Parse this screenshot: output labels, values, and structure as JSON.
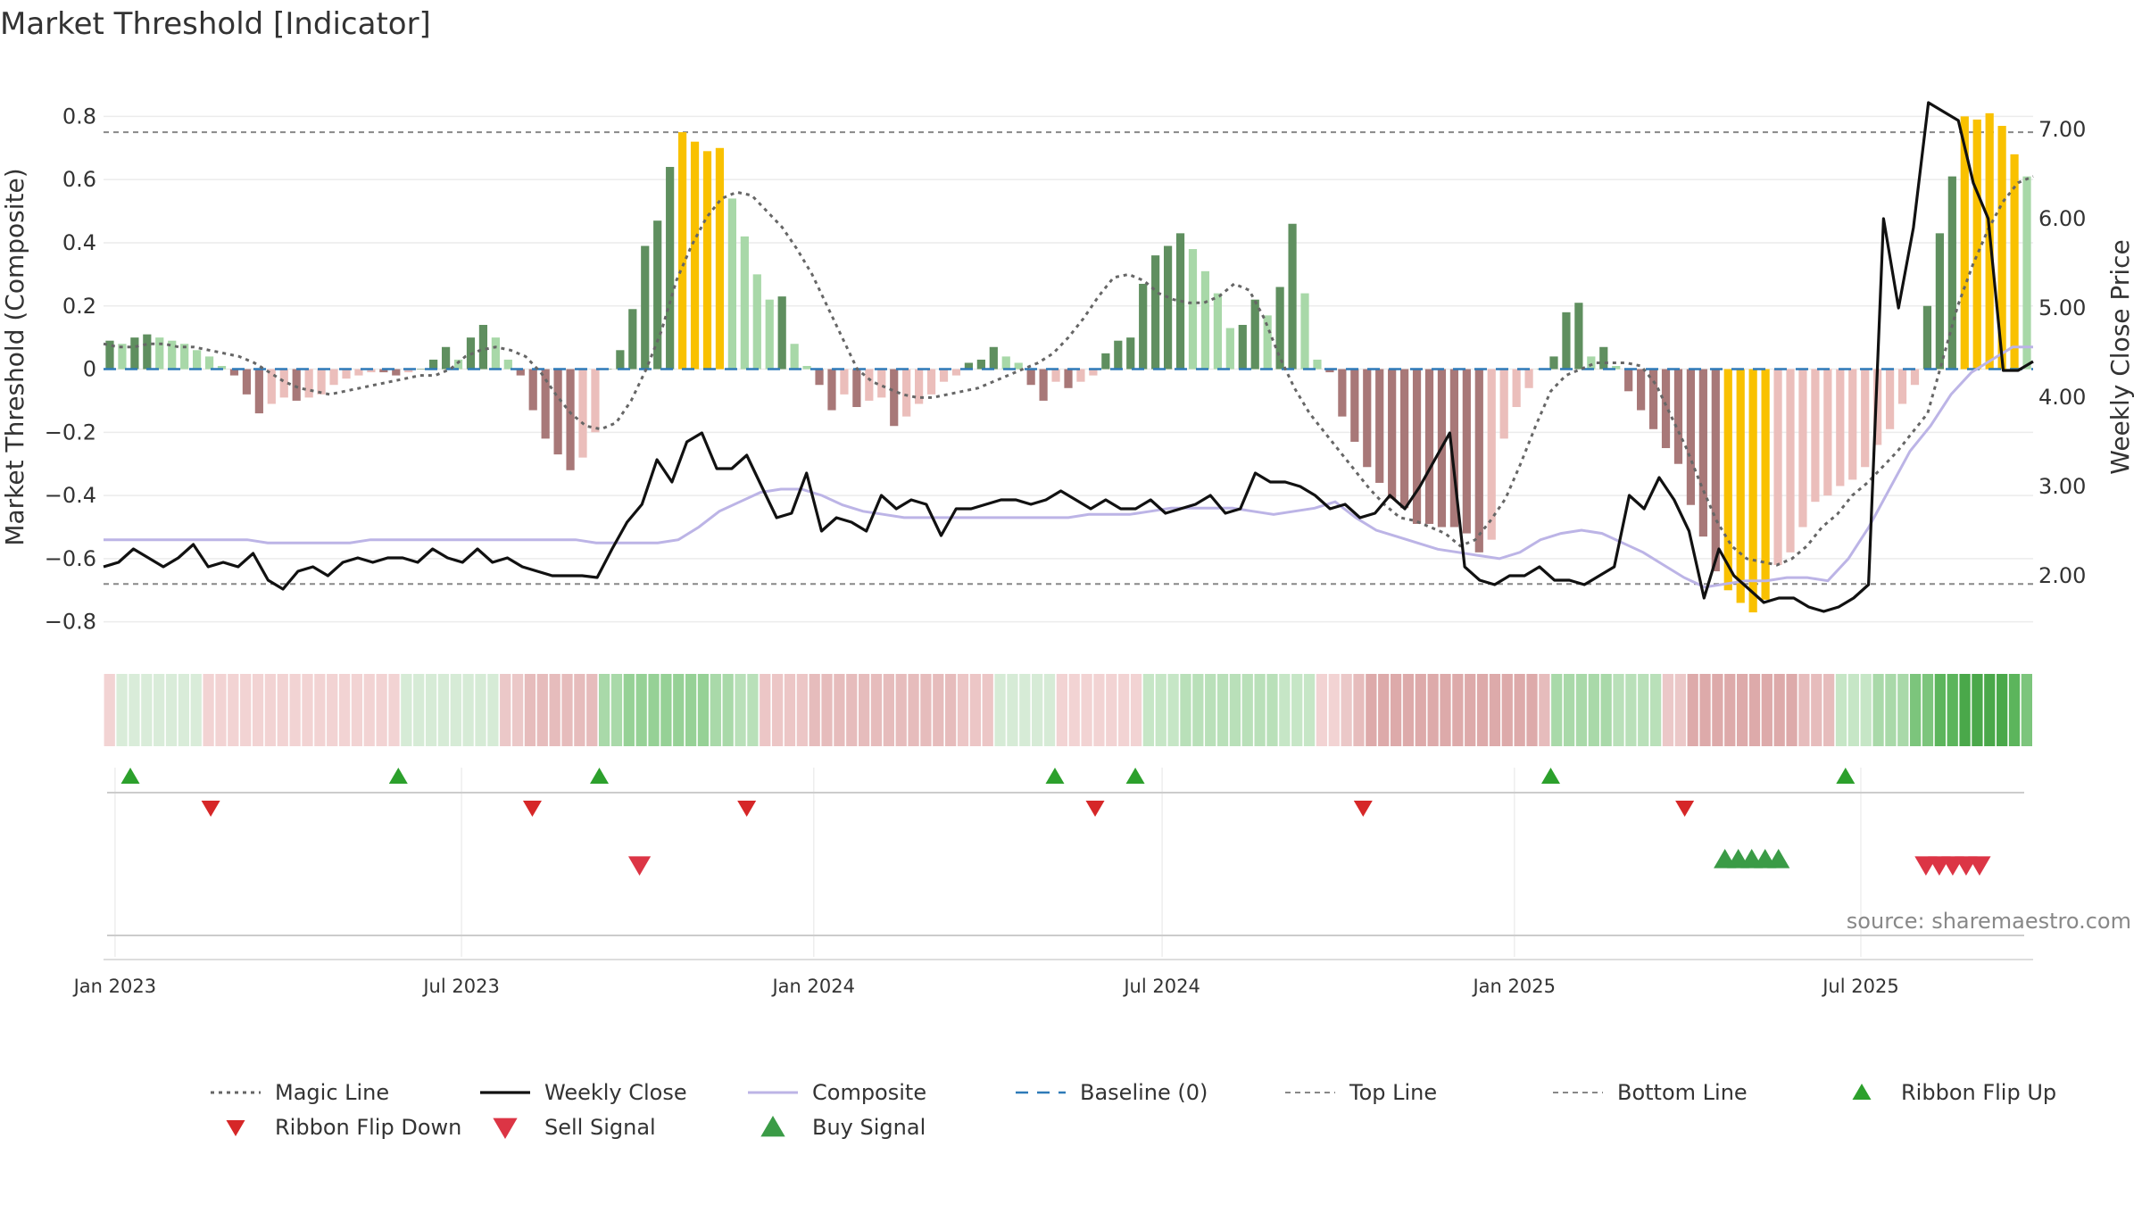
{
  "chart_data": {
    "type": "bar",
    "title": "Market Threshold [Indicator]",
    "ylabel": "Market Threshold (Composite)",
    "y2label": "Weekly Close Price",
    "ylim": [
      -0.88,
      0.9
    ],
    "y2lim": [
      1.2,
      7.5
    ],
    "yticks": [
      0.8,
      0.6,
      0.4,
      0.2,
      0,
      -0.2,
      -0.4,
      -0.6,
      -0.8
    ],
    "ytick_labels": [
      "0.8",
      "0.6",
      "0.4",
      "0.2",
      "0",
      "−0.2",
      "−0.4",
      "−0.6",
      "−0.8"
    ],
    "y2ticks": [
      7,
      6,
      5,
      4,
      3,
      2
    ],
    "y2tick_labels": [
      "7.00",
      "6.00",
      "5.00",
      "4.00",
      "3.00",
      "2.00"
    ],
    "x_start": "2022-12-26",
    "x_end": "2025-09-29",
    "xticks": [
      "2023-01-01",
      "2023-07-01",
      "2024-01-01",
      "2024-07-01",
      "2025-01-01",
      "2025-07-01"
    ],
    "xtick_labels": [
      "Jan 2023",
      "Jul 2023",
      "Jan 2024",
      "Jul 2024",
      "Jan 2025",
      "Jul 2025"
    ],
    "top_line": 0.75,
    "bottom_line": -0.68,
    "baseline": 0,
    "threshold_bars": [
      0.09,
      0.08,
      0.1,
      0.11,
      0.1,
      0.09,
      0.08,
      0.06,
      0.04,
      0.01,
      -0.02,
      -0.08,
      -0.14,
      -0.11,
      -0.09,
      -0.1,
      -0.09,
      -0.08,
      -0.05,
      -0.03,
      -0.02,
      -0.01,
      -0.01,
      -0.02,
      -0.01,
      0.0,
      0.03,
      0.07,
      0.03,
      0.1,
      0.14,
      0.1,
      0.03,
      -0.02,
      -0.13,
      -0.22,
      -0.27,
      -0.32,
      -0.28,
      -0.2,
      0.0,
      0.06,
      0.19,
      0.39,
      0.47,
      0.64,
      0.75,
      0.72,
      0.69,
      0.7,
      0.54,
      0.42,
      0.3,
      0.22,
      0.23,
      0.08,
      0.01,
      -0.05,
      -0.13,
      -0.08,
      -0.12,
      -0.1,
      -0.09,
      -0.18,
      -0.15,
      -0.11,
      -0.08,
      -0.04,
      -0.02,
      0.02,
      0.03,
      0.07,
      0.04,
      0.02,
      -0.05,
      -0.1,
      -0.04,
      -0.06,
      -0.04,
      -0.02,
      0.05,
      0.09,
      0.1,
      0.27,
      0.36,
      0.39,
      0.43,
      0.38,
      0.31,
      0.24,
      0.13,
      0.14,
      0.22,
      0.17,
      0.26,
      0.46,
      0.24,
      0.03,
      -0.01,
      -0.15,
      -0.23,
      -0.31,
      -0.36,
      -0.41,
      -0.44,
      -0.49,
      -0.49,
      -0.5,
      -0.5,
      -0.52,
      -0.58,
      -0.54,
      -0.22,
      -0.12,
      -0.06,
      0.0,
      0.04,
      0.18,
      0.21,
      0.04,
      0.07,
      0.01,
      -0.07,
      -0.13,
      -0.19,
      -0.25,
      -0.3,
      -0.43,
      -0.53,
      -0.64,
      -0.7,
      -0.74,
      -0.77,
      -0.73,
      -0.62,
      -0.58,
      -0.5,
      -0.42,
      -0.4,
      -0.37,
      -0.35,
      -0.31,
      -0.24,
      -0.19,
      -0.11,
      -0.05,
      0.2,
      0.43,
      0.61,
      0.8,
      0.79,
      0.81,
      0.77,
      0.68,
      0.61
    ],
    "magic_line": [
      0.08,
      0.07,
      0.07,
      0.08,
      0.08,
      0.07,
      0.07,
      0.06,
      0.05,
      0.04,
      0.02,
      -0.01,
      -0.04,
      -0.06,
      -0.07,
      -0.08,
      -0.07,
      -0.06,
      -0.05,
      -0.04,
      -0.03,
      -0.02,
      -0.02,
      0.0,
      0.04,
      0.06,
      0.07,
      0.06,
      0.04,
      -0.01,
      -0.08,
      -0.14,
      -0.18,
      -0.19,
      -0.17,
      -0.1,
      0.0,
      0.12,
      0.28,
      0.39,
      0.48,
      0.54,
      0.56,
      0.55,
      0.5,
      0.45,
      0.38,
      0.3,
      0.2,
      0.1,
      0.0,
      -0.04,
      -0.06,
      -0.08,
      -0.09,
      -0.09,
      -0.08,
      -0.07,
      -0.06,
      -0.04,
      -0.02,
      0.0,
      0.02,
      0.05,
      0.1,
      0.16,
      0.23,
      0.29,
      0.3,
      0.28,
      0.24,
      0.22,
      0.21,
      0.21,
      0.23,
      0.27,
      0.25,
      0.16,
      0.04,
      -0.06,
      -0.14,
      -0.2,
      -0.26,
      -0.32,
      -0.38,
      -0.43,
      -0.47,
      -0.48,
      -0.5,
      -0.52,
      -0.56,
      -0.54,
      -0.48,
      -0.41,
      -0.3,
      -0.18,
      -0.07,
      -0.02,
      0.0,
      0.02,
      0.02,
      0.02,
      0.01,
      -0.05,
      -0.15,
      -0.25,
      -0.37,
      -0.48,
      -0.56,
      -0.6,
      -0.61,
      -0.62,
      -0.6,
      -0.56,
      -0.5,
      -0.46,
      -0.4,
      -0.36,
      -0.31,
      -0.26,
      -0.2,
      -0.14,
      0.03,
      0.2,
      0.33,
      0.44,
      0.53,
      0.59,
      0.61
    ],
    "weekly_close": [
      2.1,
      2.15,
      2.3,
      2.2,
      2.1,
      2.2,
      2.35,
      2.1,
      2.15,
      2.1,
      2.25,
      1.95,
      1.85,
      2.05,
      2.1,
      2.0,
      2.15,
      2.2,
      2.15,
      2.2,
      2.2,
      2.15,
      2.3,
      2.2,
      2.15,
      2.3,
      2.15,
      2.2,
      2.1,
      2.05,
      2.0,
      2.0,
      2.0,
      1.98,
      2.3,
      2.6,
      2.8,
      3.3,
      3.05,
      3.5,
      3.6,
      3.2,
      3.2,
      3.35,
      3.0,
      2.65,
      2.7,
      3.15,
      2.5,
      2.65,
      2.6,
      2.5,
      2.9,
      2.75,
      2.85,
      2.8,
      2.45,
      2.75,
      2.75,
      2.8,
      2.85,
      2.85,
      2.8,
      2.85,
      2.95,
      2.85,
      2.75,
      2.85,
      2.75,
      2.75,
      2.85,
      2.7,
      2.75,
      2.8,
      2.9,
      2.7,
      2.75,
      3.15,
      3.05,
      3.05,
      3.0,
      2.9,
      2.75,
      2.8,
      2.65,
      2.7,
      2.9,
      2.75,
      3.0,
      3.3,
      3.6,
      2.1,
      1.95,
      1.9,
      2.0,
      2.0,
      2.1,
      1.95,
      1.95,
      1.9,
      2.0,
      2.1,
      2.9,
      2.75,
      3.1,
      2.85,
      2.5,
      1.75,
      2.3,
      2.0,
      1.85,
      1.7,
      1.75,
      1.75,
      1.65,
      1.6,
      1.65,
      1.75,
      1.9,
      6.0,
      5.0,
      5.9,
      7.3,
      7.2,
      7.1,
      6.4,
      6.0,
      4.3,
      4.3,
      4.4
    ],
    "composite": [
      -0.54,
      -0.54,
      -0.54,
      -0.54,
      -0.54,
      -0.54,
      -0.54,
      -0.54,
      -0.55,
      -0.55,
      -0.55,
      -0.55,
      -0.55,
      -0.54,
      -0.54,
      -0.54,
      -0.54,
      -0.54,
      -0.54,
      -0.54,
      -0.54,
      -0.54,
      -0.54,
      -0.54,
      -0.55,
      -0.55,
      -0.55,
      -0.55,
      -0.54,
      -0.5,
      -0.45,
      -0.42,
      -0.39,
      -0.38,
      -0.38,
      -0.4,
      -0.43,
      -0.45,
      -0.46,
      -0.47,
      -0.47,
      -0.47,
      -0.47,
      -0.47,
      -0.47,
      -0.47,
      -0.47,
      -0.47,
      -0.46,
      -0.46,
      -0.46,
      -0.45,
      -0.44,
      -0.44,
      -0.44,
      -0.44,
      -0.45,
      -0.46,
      -0.45,
      -0.44,
      -0.42,
      -0.47,
      -0.51,
      -0.53,
      -0.55,
      -0.57,
      -0.58,
      -0.59,
      -0.6,
      -0.58,
      -0.54,
      -0.52,
      -0.51,
      -0.52,
      -0.55,
      -0.58,
      -0.62,
      -0.66,
      -0.69,
      -0.68,
      -0.67,
      -0.67,
      -0.66,
      -0.66,
      -0.67,
      -0.6,
      -0.5,
      -0.38,
      -0.26,
      -0.18,
      -0.08,
      -0.01,
      0.03,
      0.07,
      0.07
    ],
    "ribbon_shades": [
      "#f2d3d3",
      "#d9ecd9",
      "#d9ecd9",
      "#d9ecd9",
      "#d9ecd9",
      "#d9ecd9",
      "#d9ecd9",
      "#d9ecd9",
      "#f2d3d3",
      "#f2d3d3",
      "#f2d3d3",
      "#f2d3d3",
      "#f2d3d3",
      "#f2d3d3",
      "#f2d3d3",
      "#f2d3d3",
      "#f2d3d3",
      "#f2d3d3",
      "#f2d3d3",
      "#f2d3d3",
      "#f2d3d3",
      "#f2d3d3",
      "#f2d3d3",
      "#f2d3d3",
      "#d6ebd6",
      "#d6ebd6",
      "#d6ebd6",
      "#d6ebd6",
      "#d6ebd6",
      "#d6ebd6",
      "#d6ebd6",
      "#d6ebd6",
      "#ebc8c8",
      "#ebc8c8",
      "#e6bcbc",
      "#e6bcbc",
      "#e6bcbc",
      "#e6bcbc",
      "#e6bcbc",
      "#e6bcbc",
      "#a9d9a9",
      "#a9d9a9",
      "#96d196",
      "#96d196",
      "#96d196",
      "#96d196",
      "#96d196",
      "#96d196",
      "#96d196",
      "#a9d9a9",
      "#a9d9a9",
      "#b9e0b9",
      "#b9e0b9",
      "#ecc6c6",
      "#ecc6c6",
      "#ecc6c6",
      "#ecc6c6",
      "#e6bcbc",
      "#e6bcbc",
      "#e6bcbc",
      "#e6bcbc",
      "#e6bcbc",
      "#e6bcbc",
      "#e6bcbc",
      "#e6bcbc",
      "#e6bcbc",
      "#e6bcbc",
      "#e6bcbc",
      "#e6bcbc",
      "#ecc6c6",
      "#ecc6c6",
      "#ecc6c6",
      "#d6ebd6",
      "#d6ebd6",
      "#d6ebd6",
      "#d6ebd6",
      "#d6ebd6",
      "#f2d3d3",
      "#f2d3d3",
      "#f2d3d3",
      "#f2d3d3",
      "#f2d3d3",
      "#f2d3d3",
      "#f2d3d3",
      "#c6e6c6",
      "#c6e6c6",
      "#c6e6c6",
      "#b9e0b9",
      "#b9e0b9",
      "#b9e0b9",
      "#b9e0b9",
      "#b9e0b9",
      "#b9e0b9",
      "#b9e0b9",
      "#b9e0b9",
      "#c6e6c6",
      "#c6e6c6",
      "#c6e6c6",
      "#f2d3d3",
      "#f2d3d3",
      "#ebc8c8",
      "#e6bcbc",
      "#ddaaaa",
      "#ddaaaa",
      "#ddaaaa",
      "#ddaaaa",
      "#ddaaaa",
      "#ddaaaa",
      "#ddaaaa",
      "#ddaaaa",
      "#ddaaaa",
      "#ddaaaa",
      "#ddaaaa",
      "#ddaaaa",
      "#ddaaaa",
      "#ddaaaa",
      "#e6bcbc",
      "#a9d9a9",
      "#a9d9a9",
      "#a9d9a9",
      "#a9d9a9",
      "#a9d9a9",
      "#b9e0b9",
      "#b9e0b9",
      "#b9e0b9",
      "#b9e0b9",
      "#ebc8c8",
      "#ebc8c8",
      "#ddaaaa",
      "#ddaaaa",
      "#ddaaaa",
      "#ddaaaa",
      "#ddaaaa",
      "#ddaaaa",
      "#ddaaaa",
      "#ddaaaa",
      "#ddaaaa",
      "#e6bcbc",
      "#e6bcbc",
      "#e6bcbc",
      "#c6e6c6",
      "#c6e6c6",
      "#c6e6c6",
      "#a9d9a9",
      "#a9d9a9",
      "#a9d9a9",
      "#7cc57c",
      "#7cc57c",
      "#5cb55c",
      "#5cb55c",
      "#4aa84a",
      "#4aa84a",
      "#4aa84a",
      "#4aa84a",
      "#5cb55c",
      "#7cc57c"
    ],
    "ribbon_flip_up": [
      "2023-01-09",
      "2023-05-29",
      "2023-09-11",
      "2024-05-06",
      "2024-06-17",
      "2025-01-20",
      "2025-06-23"
    ],
    "ribbon_flip_down": [
      "2023-02-20",
      "2023-08-07",
      "2023-11-27",
      "2024-05-27",
      "2024-10-14",
      "2025-03-31"
    ],
    "buy_signal": [
      "2025-04-21",
      "2025-04-28",
      "2025-05-05",
      "2025-05-12",
      "2025-05-19"
    ],
    "sell_signal": [
      "2023-10-02",
      "2025-08-04",
      "2025-08-11",
      "2025-08-18",
      "2025-08-25",
      "2025-09-01"
    ],
    "colors": {
      "strong_up": "#5f8f5f",
      "weak_up": "#a8d8a8",
      "strong_down": "#a87878",
      "weak_down": "#ebbebb",
      "extreme": "#f9c100",
      "weekly_close": "#111111",
      "composite": "#bcb4e6",
      "magic_line": "#666666",
      "baseline": "#2e7ab8",
      "top_bottom": "#888888",
      "signal_up": "#2ca02c",
      "signal_down": "#d62728",
      "buy_signal": "#3a9b46",
      "sell_signal": "#dc3545"
    },
    "legend": [
      {
        "label": "Magic Line",
        "icon": "dotted-line-icon"
      },
      {
        "label": "Weekly Close",
        "icon": "solid-line-icon"
      },
      {
        "label": "Composite",
        "icon": "solid-line-icon"
      },
      {
        "label": "Baseline (0)",
        "icon": "dashed-line-icon"
      },
      {
        "label": "Top Line",
        "icon": "dashed-line-icon"
      },
      {
        "label": "Bottom Line",
        "icon": "dashed-line-icon"
      },
      {
        "label": "Ribbon Flip Up",
        "icon": "triangle-up-icon"
      },
      {
        "label": "Ribbon Flip Down",
        "icon": "triangle-down-icon"
      },
      {
        "label": "Sell Signal",
        "icon": "triangle-down-icon"
      },
      {
        "label": "Buy Signal",
        "icon": "triangle-up-icon"
      }
    ],
    "legend_position": "bottom-center",
    "source": "source: sharemaestro.com"
  }
}
